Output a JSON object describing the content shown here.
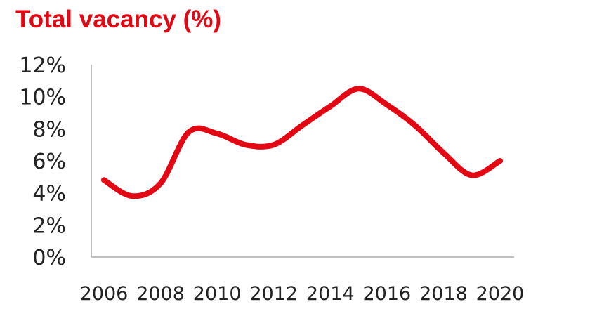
{
  "chart_data": {
    "type": "line",
    "title": "Total vacancy (%)",
    "xlabel": "",
    "ylabel": "",
    "x_ticks": [
      "2006",
      "2008",
      "2010",
      "2012",
      "2014",
      "2016",
      "2018",
      "2020"
    ],
    "y_ticks": [
      "0%",
      "2%",
      "4%",
      "6%",
      "8%",
      "10%",
      "12%"
    ],
    "ylim": [
      0,
      12
    ],
    "xlim": [
      2006,
      2020
    ],
    "grid": false,
    "legend": "none",
    "series": [
      {
        "x": [
          2006,
          2007,
          2008,
          2009,
          2010,
          2011,
          2012,
          2013,
          2014,
          2015,
          2016,
          2017,
          2018,
          2019,
          2020
        ],
        "values": [
          4.8,
          3.8,
          4.6,
          7.8,
          7.7,
          7.0,
          7.0,
          8.2,
          9.4,
          10.5,
          9.5,
          8.2,
          6.5,
          5.1,
          6.0
        ],
        "color": "#e30613"
      }
    ]
  },
  "colors": {
    "accent": "#e30613",
    "axis": "#bfbfbf",
    "text": "#222222"
  }
}
